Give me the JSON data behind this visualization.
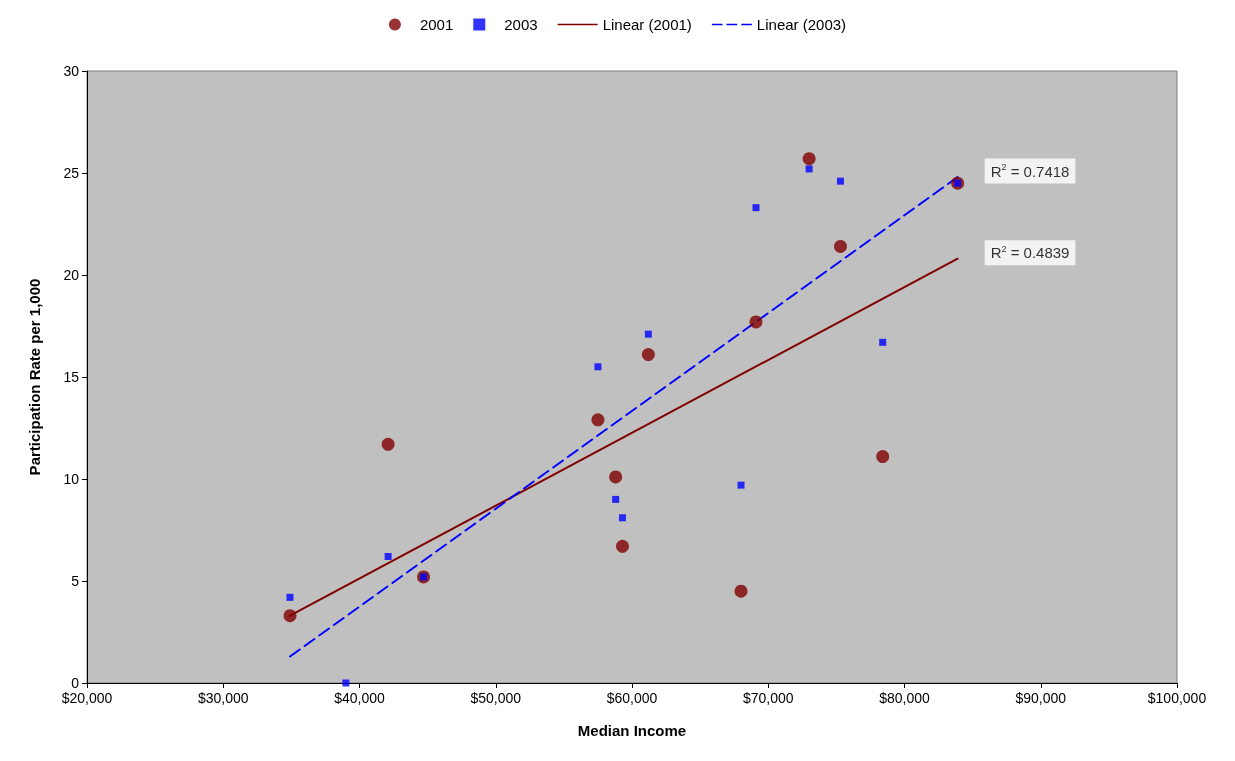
{
  "chart_data": {
    "type": "scatter",
    "xlabel": "Median Income",
    "ylabel": "Participation Rate per 1,000",
    "xlim": [
      20000,
      100000
    ],
    "xticks": [
      {
        "value": 20000,
        "label": "$20,000"
      },
      {
        "value": 30000,
        "label": "$30,000"
      },
      {
        "value": 40000,
        "label": "$40,000"
      },
      {
        "value": 50000,
        "label": "$50,000"
      },
      {
        "value": 60000,
        "label": "$60,000"
      },
      {
        "value": 70000,
        "label": "$70,000"
      },
      {
        "value": 80000,
        "label": "$80,000"
      },
      {
        "value": 90000,
        "label": "$90,000"
      },
      {
        "value": 100000,
        "label": "$100,000"
      }
    ],
    "ylim": [
      0,
      30
    ],
    "yticks": [
      0,
      5,
      10,
      15,
      20,
      25,
      30
    ],
    "grid": false,
    "legend": "top",
    "series": [
      {
        "name": "2001",
        "marker": "circle",
        "color": "#800000",
        "x": [
          34900,
          42100,
          44700,
          57500,
          58800,
          59300,
          61200,
          68000,
          69100,
          73000,
          75300,
          78400,
          83900
        ],
        "values": [
          3.3,
          11.7,
          5.2,
          12.9,
          10.1,
          6.7,
          16.1,
          4.5,
          17.7,
          25.7,
          21.4,
          11.1,
          24.5
        ]
      },
      {
        "name": "2003",
        "marker": "square",
        "color": "#0000ff",
        "x": [
          34900,
          39000,
          42100,
          44700,
          57500,
          58800,
          59300,
          61200,
          68000,
          69100,
          73000,
          75300,
          78400,
          83900
        ],
        "values": [
          4.2,
          0,
          6.2,
          5.2,
          15.5,
          9.0,
          8.1,
          17.1,
          9.7,
          23.3,
          25.2,
          24.6,
          16.7,
          24.5
        ]
      },
      {
        "name": "Linear (2001)",
        "type": "line",
        "line_style": "solid",
        "color": "#800000",
        "x": [
          34900,
          83900
        ],
        "values": [
          3.3,
          20.8
        ]
      },
      {
        "name": "Linear (2003)",
        "type": "line",
        "line_style": "dashed",
        "color": "#0000ff",
        "x": [
          34900,
          83900
        ],
        "values": [
          1.3,
          24.8
        ]
      }
    ],
    "annotations": [
      {
        "text": "R$^{2}$ = 0.7418",
        "x": 83900,
        "y": 24.8
      },
      {
        "text": "R$^{2}$ = 0.4839",
        "x": 83900,
        "y": 20.8
      }
    ]
  }
}
